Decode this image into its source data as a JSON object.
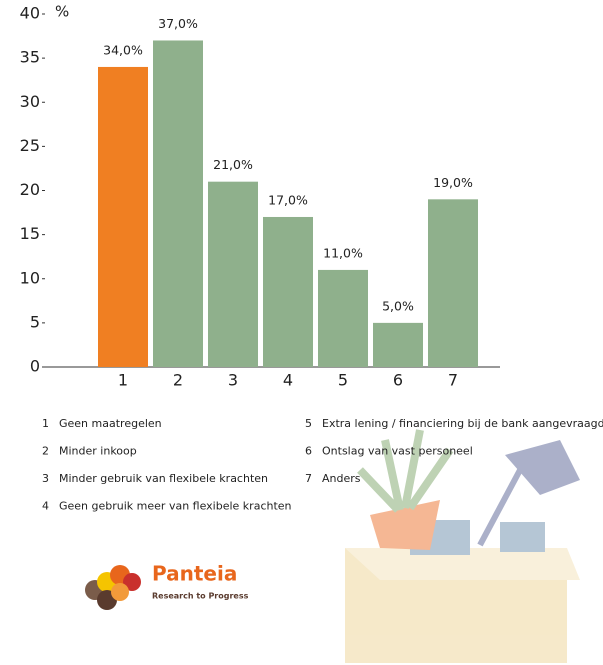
{
  "chart_data": {
    "type": "bar",
    "ylabel": "%",
    "categories": [
      "1",
      "2",
      "3",
      "4",
      "5",
      "6",
      "7"
    ],
    "values": [
      34.0,
      37.0,
      21.0,
      17.0,
      11.0,
      5.0,
      19.0
    ],
    "value_labels": [
      "34,0%",
      "37,0%",
      "21,0%",
      "17,0%",
      "11,0%",
      "5,0%",
      "19,0%"
    ],
    "colors": [
      "#f07f22",
      "#8fb08c",
      "#8fb08c",
      "#8fb08c",
      "#8fb08c",
      "#8fb08c",
      "#8fb08c"
    ],
    "ylim": [
      0,
      40
    ],
    "yticks": [
      0,
      5,
      10,
      15,
      20,
      25,
      30,
      35,
      40
    ],
    "key": [
      {
        "number": "1",
        "text": "Geen maatregelen"
      },
      {
        "number": "2",
        "text": "Minder inkoop"
      },
      {
        "number": "3",
        "text": "Minder gebruik van flexibele krachten"
      },
      {
        "number": "4",
        "text": "Geen gebruik meer van flexibele krachten"
      },
      {
        "number": "5",
        "text": "Extra lening / financiering bij de bank aangevraagd"
      },
      {
        "number": "6",
        "text": "Ontslag van vast personeel"
      },
      {
        "number": "7",
        "text": "Anders"
      }
    ]
  },
  "logo": {
    "name": "Panteia",
    "tagline": "Research to Progress"
  }
}
